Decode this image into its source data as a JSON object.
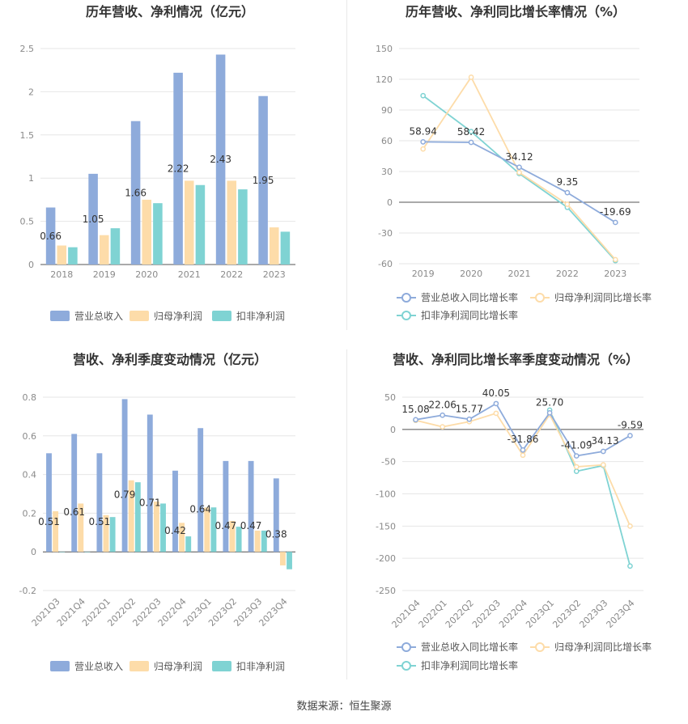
{
  "colors": {
    "revenue": "#8eabdb",
    "netprofit": "#fddca9",
    "deducted": "#7fd3d3",
    "grid": "#e6e6e6",
    "axis": "#555555",
    "tick": "#8a8a8a",
    "title": "#333333"
  },
  "footer": "数据来源：恒生聚源",
  "chart_data": [
    {
      "id": "c1",
      "type": "bar",
      "title": "历年营收、净利情况（亿元）",
      "categories": [
        "2018",
        "2019",
        "2020",
        "2021",
        "2022",
        "2023"
      ],
      "ylim": [
        0,
        2.5
      ],
      "yticks": [
        "0",
        "0.5",
        "1",
        "1.5",
        "2",
        "2.5"
      ],
      "ytick_values": [
        0,
        0.5,
        1,
        1.5,
        2,
        2.5
      ],
      "series": [
        {
          "name": "营业总收入",
          "values": [
            0.66,
            1.05,
            1.66,
            2.22,
            2.43,
            1.95
          ],
          "labels": [
            "0.66",
            "1.05",
            "1.66",
            "2.22",
            "2.43",
            "1.95"
          ]
        },
        {
          "name": "归母净利润",
          "values": [
            0.22,
            0.34,
            0.75,
            0.97,
            0.97,
            0.43
          ]
        },
        {
          "name": "扣非净利润",
          "values": [
            0.2,
            0.42,
            0.71,
            0.92,
            0.87,
            0.38
          ]
        }
      ],
      "legend": "bottom"
    },
    {
      "id": "c2",
      "type": "line",
      "title": "历年营收、净利同比增长率情况（%）",
      "categories": [
        "2019",
        "2020",
        "2021",
        "2022",
        "2023"
      ],
      "ylim": [
        -60,
        150
      ],
      "yticks": [
        "-60",
        "-30",
        "0",
        "30",
        "60",
        "90",
        "120",
        "150"
      ],
      "ytick_values": [
        -60,
        -30,
        0,
        30,
        60,
        90,
        120,
        150
      ],
      "series": [
        {
          "name": "营业总收入同比增长率",
          "values": [
            58.94,
            58.42,
            34.12,
            9.35,
            -19.69
          ],
          "labels": [
            "58.94",
            "58.42",
            "34.12",
            "9.35",
            "-19.69"
          ]
        },
        {
          "name": "归母净利润同比增长率",
          "values": [
            52,
            122,
            29,
            -2,
            -56
          ]
        },
        {
          "name": "扣非净利润同比增长率",
          "values": [
            104,
            69,
            28,
            -5,
            -57
          ]
        }
      ],
      "legend": "bottom"
    },
    {
      "id": "c3",
      "type": "bar",
      "title": "营收、净利季度变动情况（亿元）",
      "categories": [
        "2021Q3",
        "2021Q4",
        "2022Q1",
        "2022Q2",
        "2022Q3",
        "2022Q4",
        "2023Q1",
        "2023Q2",
        "2023Q3",
        "2023Q4"
      ],
      "ylim": [
        -0.2,
        0.8
      ],
      "yticks": [
        "-0.2",
        "0",
        "0.2",
        "0.4",
        "0.6",
        "0.8"
      ],
      "ytick_values": [
        -0.2,
        0,
        0.2,
        0.4,
        0.6,
        0.8
      ],
      "series": [
        {
          "name": "营业总收入",
          "values": [
            0.51,
            0.61,
            0.51,
            0.79,
            0.71,
            0.42,
            0.64,
            0.47,
            0.47,
            0.38
          ],
          "labels": [
            "0.51",
            "0.61",
            "0.51",
            "0.79",
            "0.71",
            "0.42",
            "0.64",
            "0.47",
            "0.47",
            "0.38"
          ]
        },
        {
          "name": "归母净利润",
          "values": [
            0.21,
            0.25,
            0.19,
            0.37,
            0.26,
            0.15,
            0.23,
            0.16,
            0.11,
            -0.07
          ]
        },
        {
          "name": "扣非净利润",
          "values": [
            0,
            0,
            0.18,
            0.36,
            0.25,
            0.08,
            0.23,
            0.13,
            0.11,
            -0.09
          ]
        }
      ],
      "legend": "bottom"
    },
    {
      "id": "c4",
      "type": "line",
      "title": "营收、净利同比增长率季度变动情况（%）",
      "categories": [
        "2021Q4",
        "2022Q1",
        "2022Q2",
        "2022Q3",
        "2022Q4",
        "2023Q1",
        "2023Q2",
        "2023Q3",
        "2023Q4"
      ],
      "ylim": [
        -250,
        50
      ],
      "yticks": [
        "-250",
        "-200",
        "-150",
        "-100",
        "-50",
        "0",
        "50"
      ],
      "ytick_values": [
        -250,
        -200,
        -150,
        -100,
        -50,
        0,
        50
      ],
      "series": [
        {
          "name": "营业总收入同比增长率",
          "values": [
            15.08,
            22.06,
            15.77,
            40.05,
            -31.86,
            25.7,
            -41.09,
            -34.13,
            -9.59
          ],
          "labels": [
            "15.08",
            "22.06",
            "15.77",
            "40.05",
            "-31.86",
            "25.70",
            "-41.09",
            "-34.13",
            "-9.59"
          ]
        },
        {
          "name": "归母净利润同比增长率",
          "values": [
            14,
            4,
            12,
            25,
            -40,
            23,
            -58,
            -55,
            -150
          ]
        },
        {
          "name": "扣非净利润同比增长率",
          "values": [
            14,
            null,
            null,
            null,
            null,
            30,
            -65,
            -56,
            -212
          ]
        }
      ],
      "legend": "bottom"
    }
  ]
}
